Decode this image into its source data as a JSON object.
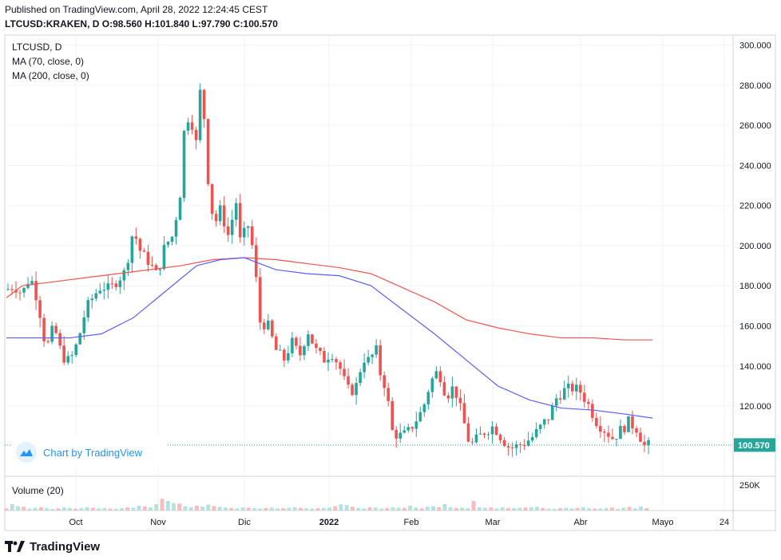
{
  "header": {
    "published": "Published on TradingView.com, April 28, 2022 12:24:45 CEST",
    "symbol": "LTCUSD:KRAKEN, D",
    "ohlc": "O:98.560 H:101.840 L:97.790 C:100.570"
  },
  "legend": {
    "symbol": "LTCUSD, D",
    "ma70": "MA (70, close, 0)",
    "ma200": "MA (200, close, 0)",
    "volume": "Volume (20)"
  },
  "badge": {
    "label": "Chart by TradingView"
  },
  "footer": {
    "brand": "TradingView"
  },
  "colors": {
    "up": "#26a69a",
    "down": "#ef5350",
    "ma70": "#5b5ff5",
    "ma200": "#ef5350",
    "lastprice": "#26a69a"
  },
  "chart_data": {
    "type": "candlestick",
    "title": "LTCUSD, D",
    "x_ticks": [
      "Oct",
      "Nov",
      "Dic",
      "2022",
      "Feb",
      "Mar",
      "Abr",
      "Mayo",
      "24"
    ],
    "y_ticks": [
      "300.000",
      "280.000",
      "260.000",
      "240.000",
      "220.000",
      "200.000",
      "180.000",
      "160.000",
      "140.000",
      "120.000"
    ],
    "ylim": [
      85,
      305
    ],
    "last_price": 100.57,
    "last_price_label": "100.570",
    "volume_tick": "250K",
    "close_path": [
      [
        0,
        178
      ],
      [
        10,
        180
      ],
      [
        20,
        176
      ],
      [
        30,
        185
      ],
      [
        40,
        172
      ],
      [
        50,
        148
      ],
      [
        60,
        160
      ],
      [
        70,
        145
      ],
      [
        80,
        142
      ],
      [
        90,
        152
      ],
      [
        100,
        168
      ],
      [
        110,
        175
      ],
      [
        120,
        180
      ],
      [
        130,
        178
      ],
      [
        140,
        183
      ],
      [
        150,
        187
      ],
      [
        160,
        208
      ],
      [
        170,
        196
      ],
      [
        180,
        192
      ],
      [
        190,
        185
      ],
      [
        200,
        200
      ],
      [
        210,
        205
      ],
      [
        220,
        228
      ],
      [
        225,
        262
      ],
      [
        232,
        265
      ],
      [
        240,
        250
      ],
      [
        245,
        280
      ],
      [
        250,
        262
      ],
      [
        255,
        230
      ],
      [
        262,
        210
      ],
      [
        270,
        218
      ],
      [
        280,
        205
      ],
      [
        290,
        222
      ],
      [
        295,
        202
      ],
      [
        305,
        210
      ],
      [
        312,
        196
      ],
      [
        320,
        162
      ],
      [
        330,
        160
      ],
      [
        340,
        148
      ],
      [
        350,
        143
      ],
      [
        360,
        152
      ],
      [
        370,
        145
      ],
      [
        380,
        158
      ],
      [
        390,
        148
      ],
      [
        400,
        143
      ],
      [
        410,
        147
      ],
      [
        420,
        140
      ],
      [
        430,
        128
      ],
      [
        440,
        128
      ],
      [
        450,
        144
      ],
      [
        460,
        142
      ],
      [
        465,
        152
      ],
      [
        470,
        138
      ],
      [
        480,
        128
      ],
      [
        485,
        108
      ],
      [
        495,
        105
      ],
      [
        505,
        106
      ],
      [
        515,
        112
      ],
      [
        525,
        118
      ],
      [
        535,
        132
      ],
      [
        545,
        138
      ],
      [
        555,
        125
      ],
      [
        565,
        130
      ],
      [
        575,
        115
      ],
      [
        585,
        100
      ],
      [
        595,
        104
      ],
      [
        605,
        108
      ],
      [
        615,
        110
      ],
      [
        625,
        104
      ],
      [
        635,
        99
      ],
      [
        645,
        100
      ],
      [
        655,
        102
      ],
      [
        665,
        105
      ],
      [
        675,
        110
      ],
      [
        685,
        115
      ],
      [
        695,
        125
      ],
      [
        705,
        128
      ],
      [
        715,
        129
      ],
      [
        725,
        127
      ],
      [
        735,
        120
      ],
      [
        745,
        112
      ],
      [
        755,
        108
      ],
      [
        765,
        104
      ],
      [
        775,
        108
      ],
      [
        785,
        112
      ],
      [
        795,
        109
      ],
      [
        805,
        100
      ],
      [
        815,
        100.57
      ]
    ],
    "ma70_path": [
      [
        0,
        154
      ],
      [
        40,
        154
      ],
      [
        80,
        154
      ],
      [
        120,
        156
      ],
      [
        160,
        164
      ],
      [
        200,
        177
      ],
      [
        240,
        190
      ],
      [
        270,
        193
      ],
      [
        300,
        194
      ],
      [
        320,
        191
      ],
      [
        340,
        188
      ],
      [
        380,
        186
      ],
      [
        420,
        185
      ],
      [
        460,
        180
      ],
      [
        500,
        168
      ],
      [
        540,
        156
      ],
      [
        580,
        143
      ],
      [
        620,
        130
      ],
      [
        660,
        123
      ],
      [
        700,
        119
      ],
      [
        740,
        118
      ],
      [
        780,
        116
      ],
      [
        815,
        114
      ]
    ],
    "ma200_path": [
      [
        0,
        174
      ],
      [
        20,
        180
      ],
      [
        60,
        182
      ],
      [
        100,
        184
      ],
      [
        140,
        186
      ],
      [
        180,
        188
      ],
      [
        220,
        190
      ],
      [
        260,
        193
      ],
      [
        300,
        194
      ],
      [
        340,
        193
      ],
      [
        380,
        191
      ],
      [
        420,
        189
      ],
      [
        460,
        186
      ],
      [
        500,
        179
      ],
      [
        540,
        172
      ],
      [
        580,
        163
      ],
      [
        620,
        159
      ],
      [
        660,
        156
      ],
      [
        700,
        154
      ],
      [
        740,
        154
      ],
      [
        780,
        153
      ],
      [
        815,
        153
      ]
    ],
    "volume": {
      "ylim": [
        0,
        300000
      ],
      "series": [
        20000,
        60000,
        40000,
        35000,
        18000,
        25000,
        30000,
        22000,
        15000,
        20000,
        28000,
        24000,
        18000,
        22000,
        30000,
        26000,
        20000,
        24000,
        18000,
        16000,
        22000,
        30000,
        26000,
        45000,
        38000,
        28000,
        60000,
        110000,
        90000,
        70000,
        65000,
        40000,
        32000,
        45000,
        38000,
        55000,
        42000,
        35000,
        28000,
        24000,
        20000,
        30000,
        26000,
        22000,
        18000,
        24000,
        28000,
        20000,
        22000,
        26000,
        30000,
        24000,
        20000,
        18000,
        22000,
        24000,
        28000,
        40000,
        58000,
        52000,
        35000,
        24000,
        20000,
        30000,
        28000,
        18000,
        22000,
        30000,
        26000,
        24000,
        45000,
        28000,
        20000,
        36000,
        40000,
        30000,
        60000,
        32000,
        24000,
        26000,
        22000,
        90000,
        30000,
        26000,
        28000,
        20000,
        30000,
        24000,
        22000,
        26000,
        28000,
        30000,
        35000,
        24000,
        18000,
        16000,
        22000,
        26000,
        20000,
        24000,
        30000,
        22000,
        18000,
        20000,
        22000,
        28000,
        16000,
        26000,
        34000,
        20000,
        36000,
        22000
      ]
    }
  }
}
